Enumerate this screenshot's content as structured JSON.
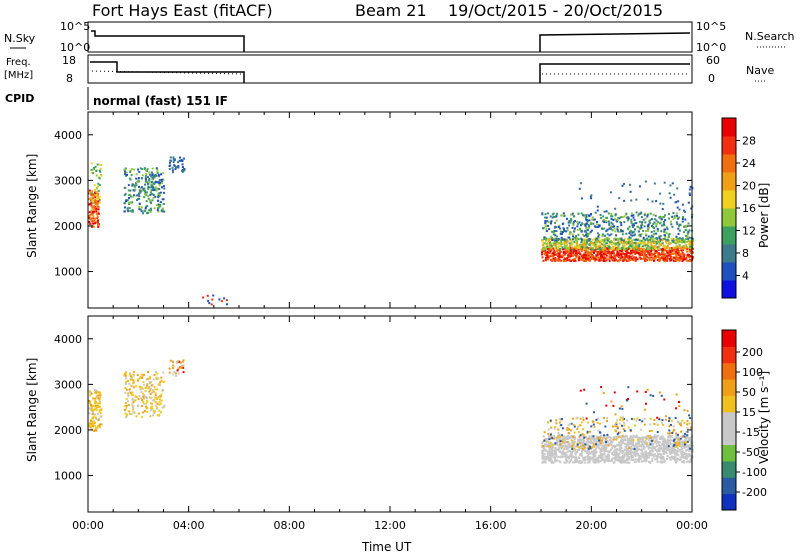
{
  "header": {
    "station": "Fort Hays East (fitACF)",
    "beam": "Beam 21",
    "dates": "19/Oct/2015 - 20/Oct/2015"
  },
  "panels": {
    "nsky_label": "N.Sky",
    "nsky_ticks": [
      "10^5",
      "10^0"
    ],
    "nsearch_label": "N.Search",
    "freq_label_1": "Freq.",
    "freq_label_2": "[MHz]",
    "freq_ticks": [
      "18",
      "8"
    ],
    "nave_label": "Nave",
    "nave_ticks": [
      "60",
      "0"
    ],
    "cpid_label": "CPID",
    "cpid_value": "normal (fast) 151 IF"
  },
  "chart_data": [
    {
      "type": "heatmap",
      "name": "power-panel",
      "xlabel": "",
      "ylabel": "Slant Range [km]",
      "yticks": [
        "1000",
        "2000",
        "3000",
        "4000"
      ],
      "yrange": [
        200,
        4500
      ],
      "colorbar": {
        "label": "Power [dB]",
        "ticks": [
          "4",
          "8",
          "12",
          "16",
          "20",
          "24",
          "28"
        ],
        "colors": [
          "#1010e0",
          "#2050c0",
          "#3c7a8c",
          "#3ca060",
          "#90c83c",
          "#f0d020",
          "#f0a018",
          "#f07010",
          "#f03010",
          "#e80000"
        ]
      }
    },
    {
      "type": "heatmap",
      "name": "velocity-panel",
      "xlabel": "Time UT",
      "ylabel": "Slant Range [km]",
      "yticks": [
        "1000",
        "2000",
        "3000",
        "4000"
      ],
      "yrange": [
        200,
        4500
      ],
      "xticks": [
        "00:00",
        "04:00",
        "08:00",
        "12:00",
        "16:00",
        "20:00",
        "00:00"
      ],
      "colorbar": {
        "label": "Velocity [m s⁻¹]",
        "ticks": [
          "200",
          "100",
          "50",
          "15",
          "-15",
          "-50",
          "-100",
          "-200"
        ],
        "colors": [
          "#1030c0",
          "#2a5aa0",
          "#3a8a70",
          "#70c040",
          "#c8c8c8",
          "#c8c8c8",
          "#f0c020",
          "#f0a018",
          "#f07010",
          "#f03010",
          "#e80000"
        ]
      }
    }
  ]
}
